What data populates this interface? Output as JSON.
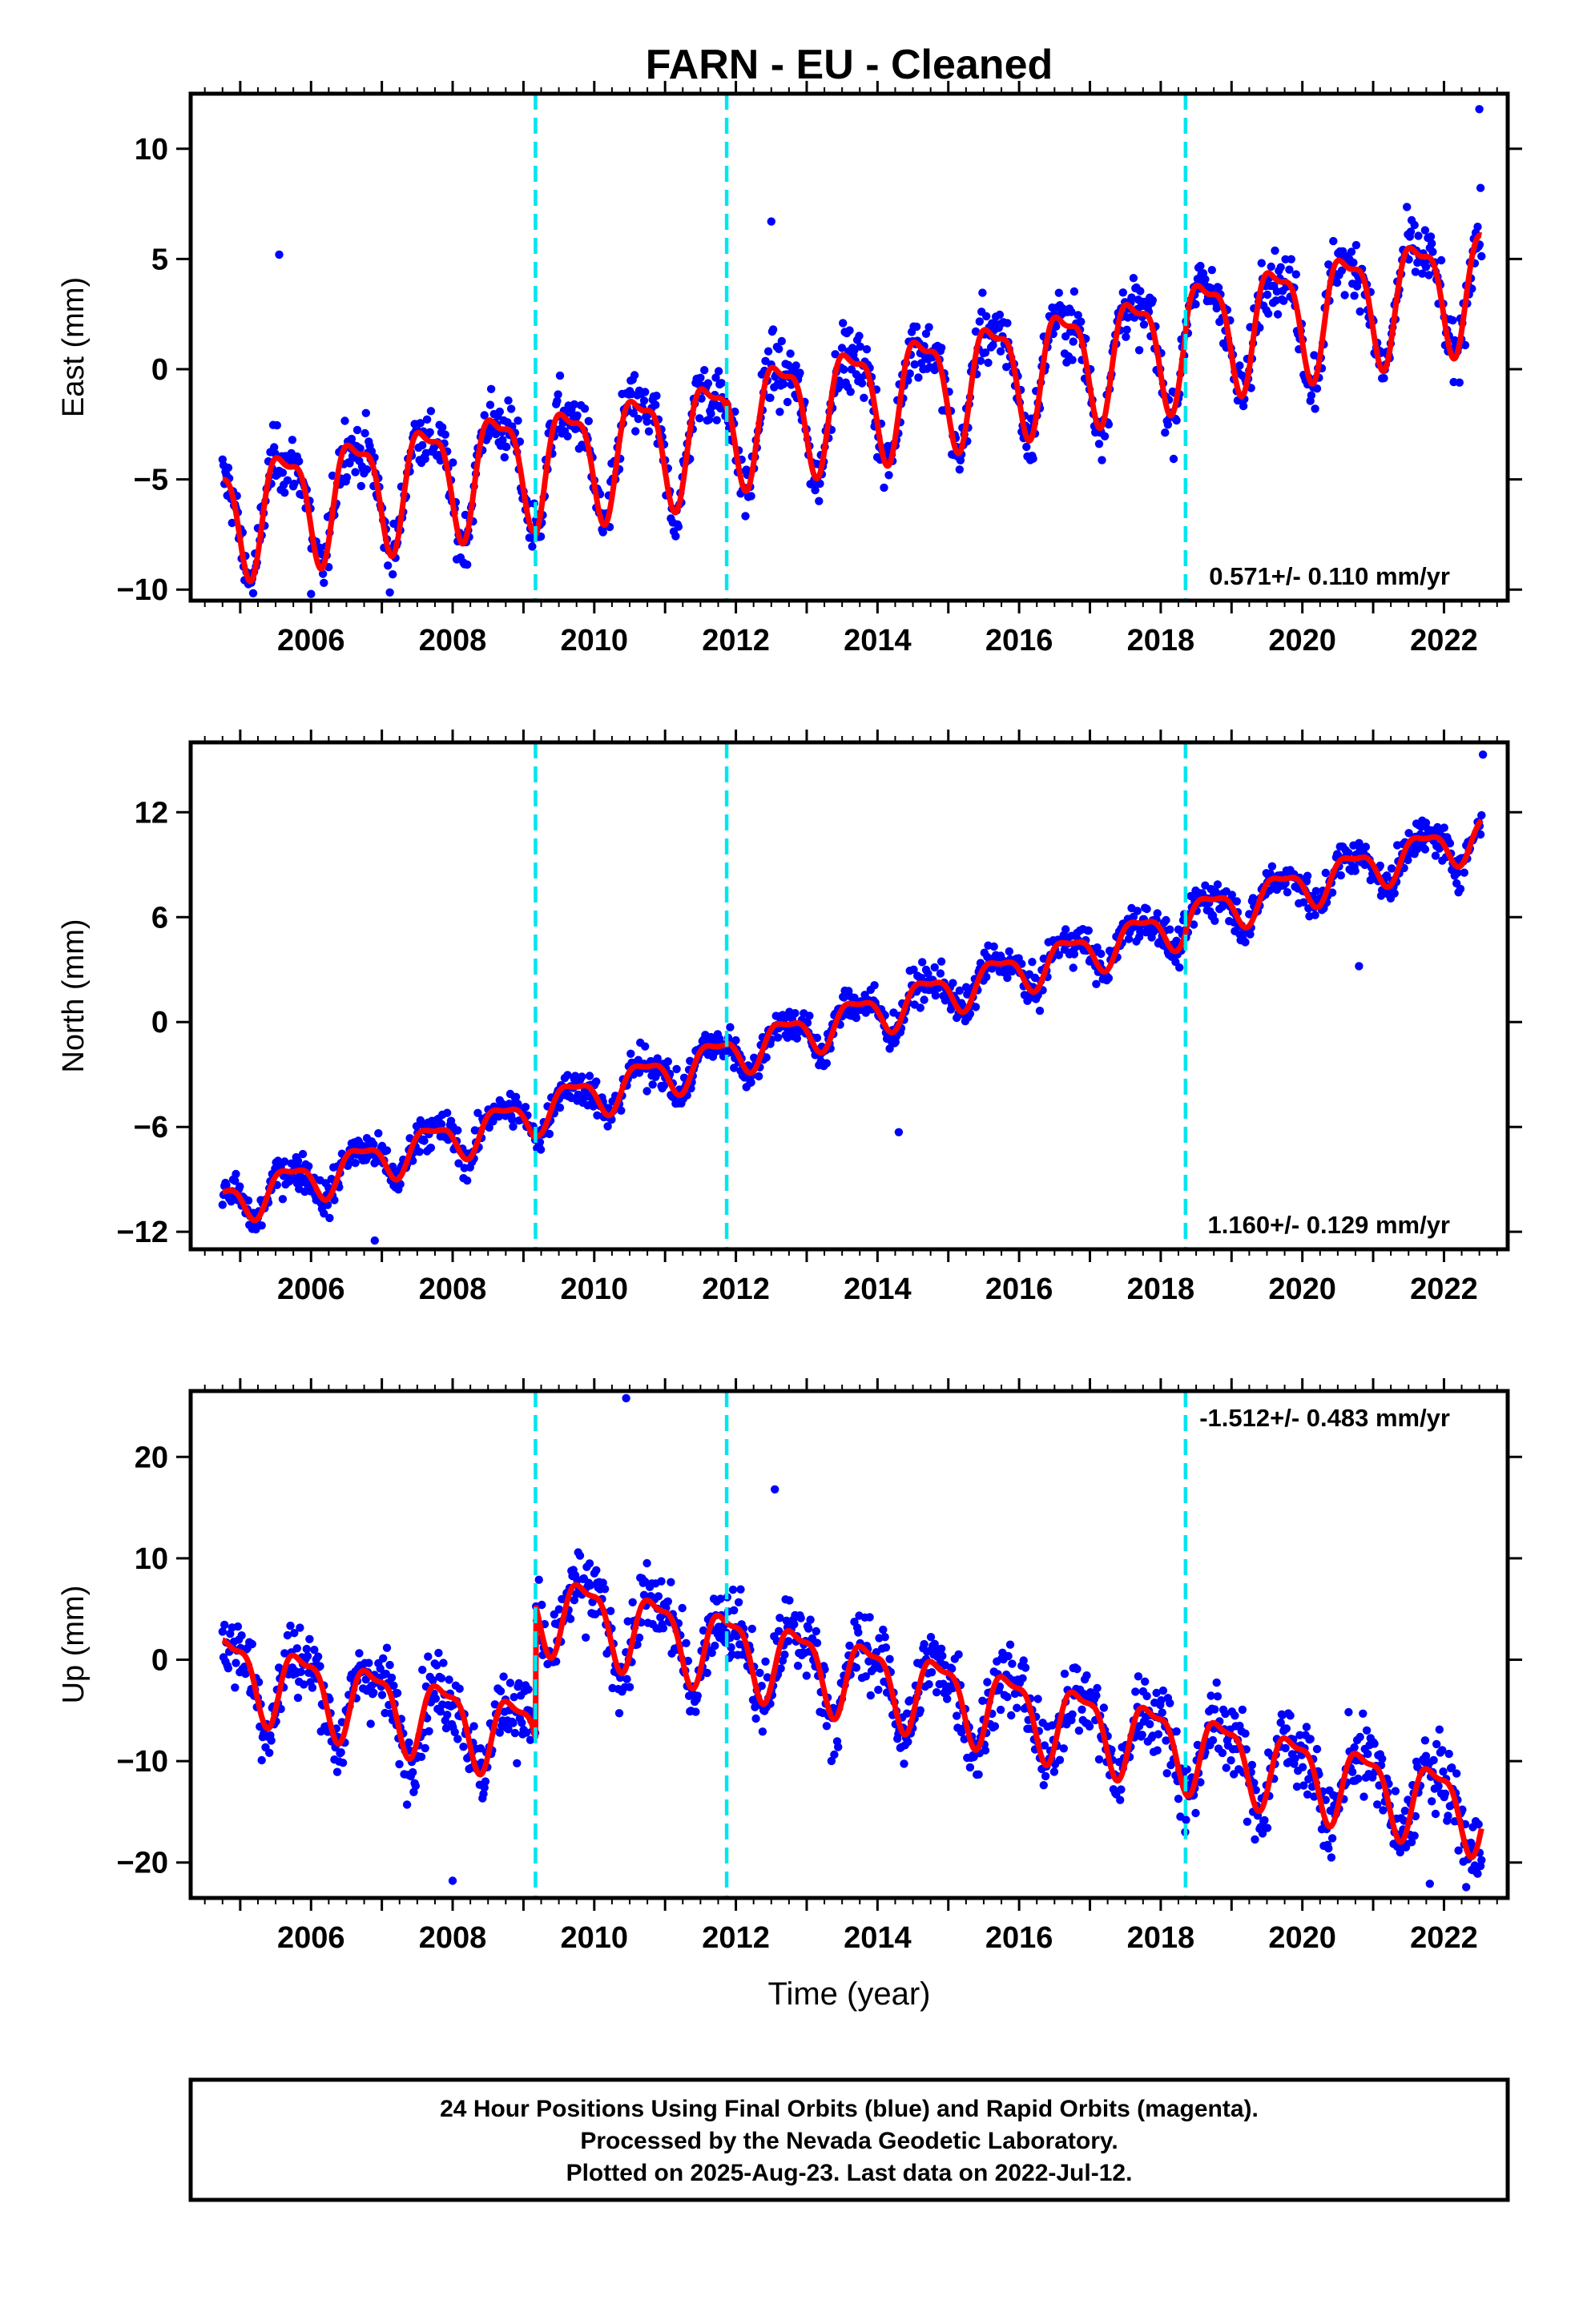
{
  "chart_data": {
    "type": "scatter",
    "title": "FARN  - EU - Cleaned",
    "xlabel": "Time (year)",
    "xlim": [
      2004.3,
      2022.9
    ],
    "xticks": [
      2006,
      2008,
      2010,
      2012,
      2014,
      2016,
      2018,
      2020,
      2022
    ],
    "x_range": [
      2004.75,
      2022.53
    ],
    "breaks": [
      2009.17,
      2011.87,
      2018.35
    ],
    "colors": {
      "data": "#0000ff",
      "model": "#ff0000",
      "breaks": "#00e5ee",
      "frame": "#000000"
    },
    "panels": [
      {
        "ylabel": "East (mm)",
        "ylim": [
          -10.5,
          12.5
        ],
        "yticks": [
          10,
          5,
          0,
          -5,
          -10
        ],
        "rate": "0.571+/- 0.110 mm/yr",
        "rate_position": "bottom-right",
        "model": {
          "start": -6.5,
          "slope": 0.571,
          "amp": 2.5,
          "phase": 0.38,
          "offsets": [
            [
              2009.17,
              -0.3
            ],
            [
              2011.87,
              0.4
            ],
            [
              2018.35,
              0.3
            ]
          ],
          "noise": 1.6,
          "note_points": [
            [
              2005.55,
              5.2
            ],
            [
              2006.0,
              -10.2
            ],
            [
              2012.5,
              6.7
            ],
            [
              2022.5,
              11.8
            ]
          ]
        }
      },
      {
        "ylabel": "North (mm)",
        "ylim": [
          -13,
          16
        ],
        "yticks": [
          12,
          6,
          0,
          -6,
          -12
        ],
        "rate": "1.160+/- 0.129 mm/yr",
        "rate_position": "bottom-right",
        "model": {
          "start": -10.4,
          "slope": 1.16,
          "amp": 1.1,
          "phase": 0.45,
          "offsets": [
            [
              2009.17,
              0.2
            ],
            [
              2011.87,
              0.1
            ],
            [
              2018.35,
              0.2
            ]
          ],
          "noise": 1.25,
          "note_points": [
            [
              2006.9,
              -12.5
            ],
            [
              2014.3,
              -6.3
            ],
            [
              2020.8,
              3.2
            ],
            [
              2022.55,
              15.3
            ]
          ]
        }
      },
      {
        "ylabel": "Up (mm)",
        "ylim": [
          -23.5,
          26.5
        ],
        "yticks": [
          20,
          10,
          0,
          -10,
          -20
        ],
        "rate": "-1.512+/- 0.483 mm/yr",
        "rate_position": "top-right",
        "model": {
          "start": -1.0,
          "slope": -1.512,
          "amp": 3.6,
          "phase": 0.62,
          "offsets": [
            [
              2009.17,
              13.0
            ],
            [
              2011.87,
              0.0
            ],
            [
              2018.35,
              0.0
            ]
          ],
          "noise": 4.3,
          "note_points": [
            [
              2010.45,
              25.8
            ],
            [
              2008.0,
              -21.8
            ],
            [
              2021.8,
              -22.1
            ],
            [
              2012.55,
              16.8
            ]
          ]
        }
      }
    ]
  },
  "footer": {
    "line1": "24 Hour Positions Using Final Orbits (blue) and Rapid Orbits (magenta).",
    "line2": "Processed by the Nevada Geodetic Laboratory.",
    "line3": "Plotted on 2025-Aug-23. Last data on 2022-Jul-12."
  }
}
